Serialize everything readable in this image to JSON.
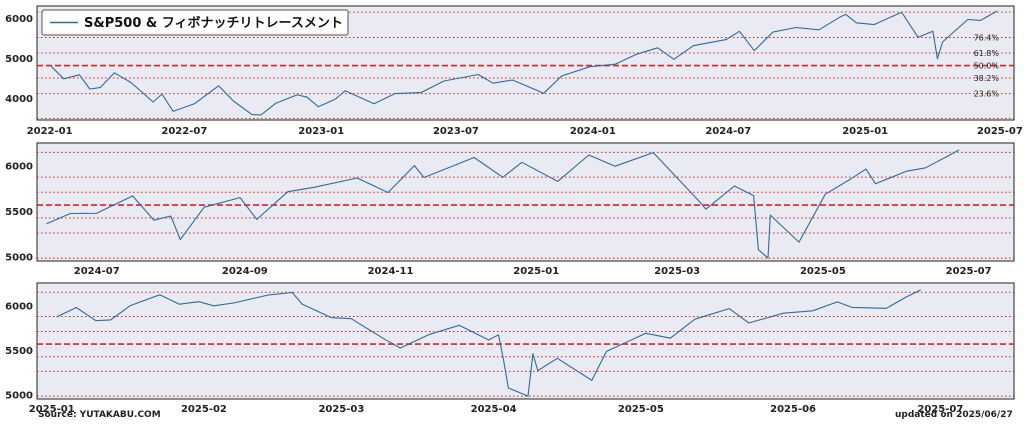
{
  "chart_data": [
    {
      "type": "line",
      "legend": "S&P500 & フィボナッチリトレースメント",
      "legend_position": "top-left",
      "ylim": [
        3450,
        6300
      ],
      "yticks": [
        4000,
        5000,
        6000
      ],
      "xlim": [
        "2021-12-15",
        "2025-07-20"
      ],
      "xticks": [
        "2022-01",
        "2022-07",
        "2023-01",
        "2023-07",
        "2024-01",
        "2024-07",
        "2025-01",
        "2025-07"
      ],
      "fib_levels": [
        {
          "label": "",
          "value": 6147
        },
        {
          "label": "76.4%",
          "value": 5514
        },
        {
          "label": "61.8%",
          "value": 5126
        },
        {
          "label": "50.0%",
          "value": 4812
        },
        {
          "label": "38.2%",
          "value": 4499
        },
        {
          "label": "23.6%",
          "value": 4110
        },
        {
          "label": "",
          "value": 3491
        }
      ],
      "series": [
        {
          "x": [
            "2022-01-03",
            "2022-01-20",
            "2022-02-10",
            "2022-02-24",
            "2022-03-10",
            "2022-03-29",
            "2022-04-20",
            "2022-05-05",
            "2022-05-20",
            "2022-06-01",
            "2022-06-16",
            "2022-07-15",
            "2022-08-16",
            "2022-09-05",
            "2022-09-30",
            "2022-10-12",
            "2022-11-01",
            "2022-11-30",
            "2022-12-13",
            "2022-12-28",
            "2023-01-20",
            "2023-02-02",
            "2023-03-13",
            "2023-04-10",
            "2023-05-15",
            "2023-06-15",
            "2023-07-31",
            "2023-08-20",
            "2023-09-15",
            "2023-10-27",
            "2023-11-20",
            "2023-12-28",
            "2024-01-31",
            "2024-02-29",
            "2024-03-28",
            "2024-04-19",
            "2024-05-15",
            "2024-06-28",
            "2024-07-16",
            "2024-08-05",
            "2024-08-30",
            "2024-09-30",
            "2024-10-31",
            "2024-11-29",
            "2024-12-06",
            "2024-12-20",
            "2025-01-13",
            "2025-02-19",
            "2025-03-13",
            "2025-04-02",
            "2025-04-08",
            "2025-04-15",
            "2025-05-02",
            "2025-05-19",
            "2025-06-05",
            "2025-06-27"
          ],
          "y": [
            4796,
            4480,
            4580,
            4225,
            4260,
            4630,
            4390,
            4150,
            3900,
            4100,
            3666,
            3860,
            4305,
            3924,
            3585,
            3577,
            3870,
            4080,
            4020,
            3783,
            3972,
            4179,
            3855,
            4110,
            4136,
            4425,
            4588,
            4370,
            4450,
            4117,
            4550,
            4783,
            4845,
            5096,
            5254,
            4967,
            5308,
            5460,
            5667,
            5186,
            5648,
            5762,
            5705,
            6032,
            6090,
            5880,
            5836,
            6144,
            5521,
            5670,
            4982,
            5400,
            5686,
            5963,
            5939,
            6173
          ]
        }
      ]
    },
    {
      "type": "line",
      "ylim": [
        4950,
        6250
      ],
      "yticks": [
        5000,
        5500,
        6000
      ],
      "xlim": [
        "2024-06-06",
        "2025-07-20"
      ],
      "xticks": [
        "2024-07",
        "2024-09",
        "2024-11",
        "2025-01",
        "2025-03",
        "2025-05",
        "2025-07"
      ],
      "fib_levels": [
        {
          "label": "",
          "value": 6147
        },
        {
          "label": "",
          "value": 5874
        },
        {
          "label": "",
          "value": 5707
        },
        {
          "label": "",
          "value": 5566
        },
        {
          "label": "",
          "value": 5424
        },
        {
          "label": "",
          "value": 5259
        },
        {
          "label": "",
          "value": 4982
        }
      ],
      "series": [
        {
          "x": [
            "2024-06-10",
            "2024-06-20",
            "2024-07-01",
            "2024-07-16",
            "2024-07-25",
            "2024-08-01",
            "2024-08-05",
            "2024-08-15",
            "2024-08-30",
            "2024-09-06",
            "2024-09-19",
            "2024-09-30",
            "2024-10-18",
            "2024-10-31",
            "2024-11-11",
            "2024-11-15",
            "2024-12-06",
            "2024-12-18",
            "2024-12-26",
            "2025-01-10",
            "2025-01-23",
            "2025-02-03",
            "2025-02-19",
            "2025-03-10",
            "2025-03-13",
            "2025-03-25",
            "2025-04-02",
            "2025-04-04",
            "2025-04-08",
            "2025-04-09",
            "2025-04-21",
            "2025-05-02",
            "2025-05-12",
            "2025-05-19",
            "2025-05-23",
            "2025-06-05",
            "2025-06-13",
            "2025-06-27"
          ],
          "y": [
            5360,
            5473,
            5475,
            5667,
            5400,
            5446,
            5186,
            5543,
            5648,
            5408,
            5713,
            5762,
            5864,
            5705,
            6001,
            5870,
            6090,
            5872,
            6037,
            5827,
            6118,
            5994,
            6144,
            5614,
            5521,
            5776,
            5670,
            5074,
            4982,
            5456,
            5158,
            5686,
            5844,
            5963,
            5802,
            5939,
            5977,
            6173
          ]
        }
      ]
    },
    {
      "type": "line",
      "ylim": [
        4950,
        6250
      ],
      "yticks": [
        5000,
        5500,
        6000
      ],
      "xlim": [
        "2024-12-29",
        "2025-07-16"
      ],
      "xticks": [
        "2025-01",
        "2025-02",
        "2025-03",
        "2025-04",
        "2025-05",
        "2025-06",
        "2025-07"
      ],
      "fib_levels": [
        {
          "label": "",
          "value": 6147
        },
        {
          "label": "",
          "value": 5874
        },
        {
          "label": "",
          "value": 5707
        },
        {
          "label": "",
          "value": 5566
        },
        {
          "label": "",
          "value": 5424
        },
        {
          "label": "",
          "value": 5259
        },
        {
          "label": "",
          "value": 4982
        }
      ],
      "series": [
        {
          "x": [
            "2025-01-02",
            "2025-01-06",
            "2025-01-10",
            "2025-01-13",
            "2025-01-17",
            "2025-01-23",
            "2025-01-27",
            "2025-01-31",
            "2025-02-03",
            "2025-02-07",
            "2025-02-14",
            "2025-02-19",
            "2025-02-21",
            "2025-02-27",
            "2025-03-03",
            "2025-03-10",
            "2025-03-13",
            "2025-03-19",
            "2025-03-25",
            "2025-03-31",
            "2025-04-02",
            "2025-04-03",
            "2025-04-04",
            "2025-04-08",
            "2025-04-09",
            "2025-04-10",
            "2025-04-14",
            "2025-04-21",
            "2025-04-24",
            "2025-05-02",
            "2025-05-07",
            "2025-05-12",
            "2025-05-19",
            "2025-05-23",
            "2025-05-30",
            "2025-06-05",
            "2025-06-10",
            "2025-06-13",
            "2025-06-20",
            "2025-06-24",
            "2025-06-27"
          ],
          "y": [
            5869,
            5975,
            5827,
            5836,
            5997,
            6118,
            6012,
            6040,
            5994,
            6026,
            6114,
            6144,
            6013,
            5861,
            5850,
            5614,
            5521,
            5675,
            5776,
            5611,
            5670,
            5396,
            5074,
            4982,
            5456,
            5268,
            5406,
            5158,
            5484,
            5686,
            5631,
            5844,
            5963,
            5802,
            5912,
            5939,
            6038,
            5977,
            5967,
            6092,
            6173
          ]
        }
      ]
    }
  ],
  "footer": {
    "source": "Source: YUTAKABU.COM",
    "updated": "updated on 2025/06/27"
  }
}
